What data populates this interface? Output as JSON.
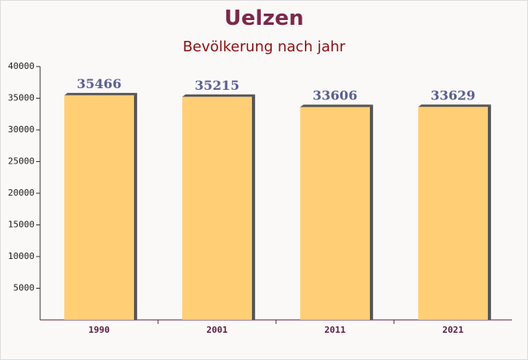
{
  "chart_data": {
    "type": "bar",
    "title": "Uelzen",
    "subtitle": "Bevölkerung nach jahr",
    "categories": [
      "1990",
      "2001",
      "2011",
      "2021"
    ],
    "values": [
      35466,
      35215,
      33606,
      33629
    ],
    "color": "#ffc966",
    "ylim": [
      0,
      40000
    ],
    "yticks": [
      5000,
      10000,
      15000,
      20000,
      25000,
      30000,
      35000,
      40000
    ]
  }
}
